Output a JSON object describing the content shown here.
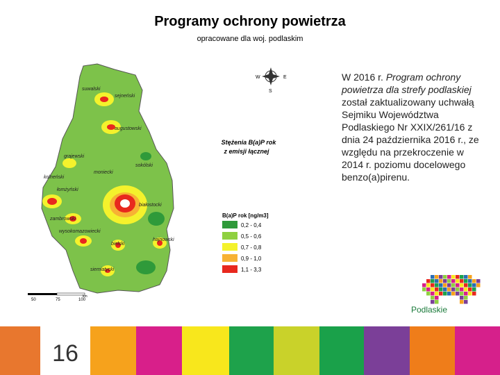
{
  "header": {
    "title": "Programy ochrony powietrza",
    "subtitle": "opracowane dla woj. podlaskim"
  },
  "map": {
    "legend_title_1": "Stężenia B(a)P rok",
    "legend_title_2": "z emisji łącznej",
    "legend_unit": "B(a)P rok [ng/m3]",
    "legend_items": [
      {
        "label": "0,2 - 0,4",
        "color": "#2f9a3a"
      },
      {
        "label": "0,5 - 0,6",
        "color": "#8fd040"
      },
      {
        "label": "0,7 - 0,8",
        "color": "#f4f22c"
      },
      {
        "label": "0,9 - 1,0",
        "color": "#f7b234"
      },
      {
        "label": "1,1 - 3,3",
        "color": "#e8281e"
      }
    ],
    "compass": {
      "w": "W",
      "e": "E",
      "s": "S"
    },
    "scale": [
      "50",
      "75",
      "100",
      "km"
    ],
    "districts": [
      "suwalski",
      "sejneński",
      "augustowski",
      "grajewski",
      "moniecki",
      "sokólski",
      "kolneński",
      "łomżyński",
      "zambrowski",
      "białostocki",
      "wysokomazowiecki",
      "bielski",
      "hajnowski",
      "siemiatycki"
    ]
  },
  "body": {
    "part1": "W 2016 r. ",
    "italic": "Program ochrony powietrza dla strefy podlaskiej",
    "part2": " został zaktualizowany uchwałą Sejmiku Województwa Podlaskiego Nr XXIX/261/16 z dnia 24 października 2016 r., ze względu na przekroczenie w 2014 r. poziomu docelowego benzo(a)pirenu."
  },
  "logo": "Podlaskie",
  "page_number": "16"
}
